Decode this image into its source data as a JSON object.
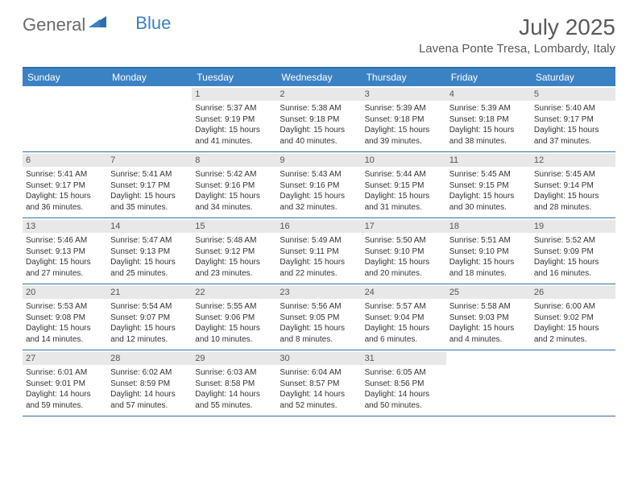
{
  "logo": {
    "text1": "General",
    "text2": "Blue"
  },
  "title": "July 2025",
  "location": "Lavena Ponte Tresa, Lombardy, Italy",
  "colors": {
    "header_bg": "#3b82c4",
    "border": "#2f6fa8",
    "daynum_bg": "#e8e8e8",
    "text_gray": "#5a5a5a",
    "text_dark": "#333333"
  },
  "weekdays": [
    "Sunday",
    "Monday",
    "Tuesday",
    "Wednesday",
    "Thursday",
    "Friday",
    "Saturday"
  ],
  "weeks": [
    [
      null,
      null,
      {
        "n": "1",
        "sr": "5:37 AM",
        "ss": "9:19 PM",
        "dl": "15 hours and 41 minutes."
      },
      {
        "n": "2",
        "sr": "5:38 AM",
        "ss": "9:18 PM",
        "dl": "15 hours and 40 minutes."
      },
      {
        "n": "3",
        "sr": "5:39 AM",
        "ss": "9:18 PM",
        "dl": "15 hours and 39 minutes."
      },
      {
        "n": "4",
        "sr": "5:39 AM",
        "ss": "9:18 PM",
        "dl": "15 hours and 38 minutes."
      },
      {
        "n": "5",
        "sr": "5:40 AM",
        "ss": "9:17 PM",
        "dl": "15 hours and 37 minutes."
      }
    ],
    [
      {
        "n": "6",
        "sr": "5:41 AM",
        "ss": "9:17 PM",
        "dl": "15 hours and 36 minutes."
      },
      {
        "n": "7",
        "sr": "5:41 AM",
        "ss": "9:17 PM",
        "dl": "15 hours and 35 minutes."
      },
      {
        "n": "8",
        "sr": "5:42 AM",
        "ss": "9:16 PM",
        "dl": "15 hours and 34 minutes."
      },
      {
        "n": "9",
        "sr": "5:43 AM",
        "ss": "9:16 PM",
        "dl": "15 hours and 32 minutes."
      },
      {
        "n": "10",
        "sr": "5:44 AM",
        "ss": "9:15 PM",
        "dl": "15 hours and 31 minutes."
      },
      {
        "n": "11",
        "sr": "5:45 AM",
        "ss": "9:15 PM",
        "dl": "15 hours and 30 minutes."
      },
      {
        "n": "12",
        "sr": "5:45 AM",
        "ss": "9:14 PM",
        "dl": "15 hours and 28 minutes."
      }
    ],
    [
      {
        "n": "13",
        "sr": "5:46 AM",
        "ss": "9:13 PM",
        "dl": "15 hours and 27 minutes."
      },
      {
        "n": "14",
        "sr": "5:47 AM",
        "ss": "9:13 PM",
        "dl": "15 hours and 25 minutes."
      },
      {
        "n": "15",
        "sr": "5:48 AM",
        "ss": "9:12 PM",
        "dl": "15 hours and 23 minutes."
      },
      {
        "n": "16",
        "sr": "5:49 AM",
        "ss": "9:11 PM",
        "dl": "15 hours and 22 minutes."
      },
      {
        "n": "17",
        "sr": "5:50 AM",
        "ss": "9:10 PM",
        "dl": "15 hours and 20 minutes."
      },
      {
        "n": "18",
        "sr": "5:51 AM",
        "ss": "9:10 PM",
        "dl": "15 hours and 18 minutes."
      },
      {
        "n": "19",
        "sr": "5:52 AM",
        "ss": "9:09 PM",
        "dl": "15 hours and 16 minutes."
      }
    ],
    [
      {
        "n": "20",
        "sr": "5:53 AM",
        "ss": "9:08 PM",
        "dl": "15 hours and 14 minutes."
      },
      {
        "n": "21",
        "sr": "5:54 AM",
        "ss": "9:07 PM",
        "dl": "15 hours and 12 minutes."
      },
      {
        "n": "22",
        "sr": "5:55 AM",
        "ss": "9:06 PM",
        "dl": "15 hours and 10 minutes."
      },
      {
        "n": "23",
        "sr": "5:56 AM",
        "ss": "9:05 PM",
        "dl": "15 hours and 8 minutes."
      },
      {
        "n": "24",
        "sr": "5:57 AM",
        "ss": "9:04 PM",
        "dl": "15 hours and 6 minutes."
      },
      {
        "n": "25",
        "sr": "5:58 AM",
        "ss": "9:03 PM",
        "dl": "15 hours and 4 minutes."
      },
      {
        "n": "26",
        "sr": "6:00 AM",
        "ss": "9:02 PM",
        "dl": "15 hours and 2 minutes."
      }
    ],
    [
      {
        "n": "27",
        "sr": "6:01 AM",
        "ss": "9:01 PM",
        "dl": "14 hours and 59 minutes."
      },
      {
        "n": "28",
        "sr": "6:02 AM",
        "ss": "8:59 PM",
        "dl": "14 hours and 57 minutes."
      },
      {
        "n": "29",
        "sr": "6:03 AM",
        "ss": "8:58 PM",
        "dl": "14 hours and 55 minutes."
      },
      {
        "n": "30",
        "sr": "6:04 AM",
        "ss": "8:57 PM",
        "dl": "14 hours and 52 minutes."
      },
      {
        "n": "31",
        "sr": "6:05 AM",
        "ss": "8:56 PM",
        "dl": "14 hours and 50 minutes."
      },
      null,
      null
    ]
  ],
  "labels": {
    "sunrise": "Sunrise: ",
    "sunset": "Sunset: ",
    "daylight": "Daylight: "
  }
}
